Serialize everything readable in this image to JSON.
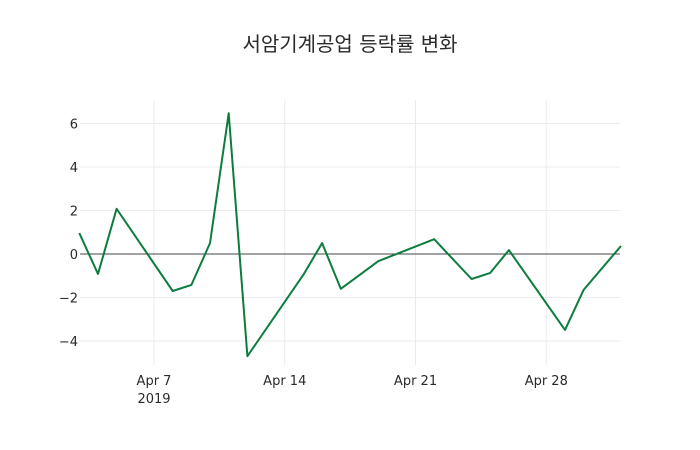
{
  "chart_data": {
    "type": "line",
    "title": "서암기계공업 등락률 변화",
    "xlabel": "",
    "ylabel": "",
    "ylim": [
      -5.2,
      7.0
    ],
    "yticks": [
      -4,
      -2,
      0,
      2,
      4,
      6
    ],
    "ytick_labels": [
      "−4",
      "−2",
      "0",
      "2",
      "4",
      "6"
    ],
    "xtick_labels": [
      "Apr 7\n2019",
      "Apr 14",
      "Apr 21",
      "Apr 28"
    ],
    "xtick_dates": [
      "2019-04-07",
      "2019-04-14",
      "2019-04-21",
      "2019-04-28"
    ],
    "grid": true,
    "zero_line": true,
    "line_color": "#0c7d3e",
    "series": [
      {
        "name": "등락률",
        "x": [
          "2019-04-03",
          "2019-04-04",
          "2019-04-05",
          "2019-04-08",
          "2019-04-09",
          "2019-04-10",
          "2019-04-11",
          "2019-04-12",
          "2019-04-15",
          "2019-04-16",
          "2019-04-17",
          "2019-04-18",
          "2019-04-19",
          "2019-04-22",
          "2019-04-23",
          "2019-04-24",
          "2019-04-25",
          "2019-04-26",
          "2019-04-29",
          "2019-04-30",
          "2019-05-02"
        ],
        "values": [
          0.96,
          -0.92,
          2.08,
          -1.7,
          -1.42,
          0.5,
          6.47,
          -4.7,
          -0.95,
          0.5,
          -1.6,
          -0.97,
          -0.33,
          0.68,
          -0.24,
          -1.15,
          -0.87,
          0.18,
          -3.49,
          -1.65,
          0.37
        ]
      }
    ]
  }
}
